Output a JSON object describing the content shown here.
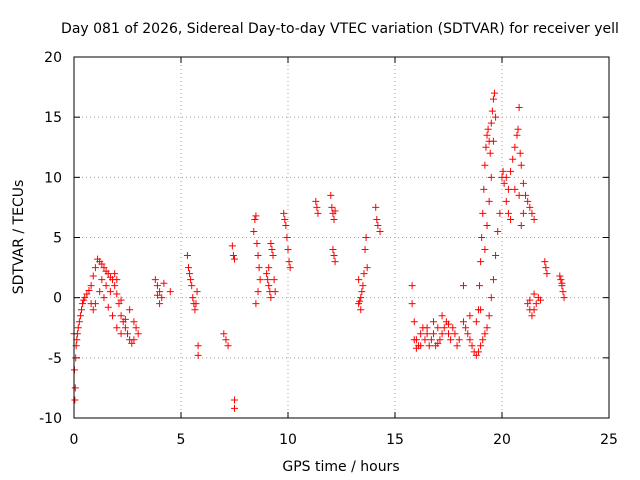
{
  "chart_data": {
    "type": "scatter",
    "title": "Day 081 of 2026, Sidereal Day-to-day VTEC variation (SDTVAR) for receiver yell",
    "xlabel": "GPS time / hours",
    "ylabel": "SDTVAR / TECUs",
    "xlim": [
      0,
      25
    ],
    "ylim": [
      -10,
      20
    ],
    "xticks": [
      0,
      5,
      10,
      15,
      20,
      25
    ],
    "yticks": [
      -10,
      -5,
      0,
      5,
      10,
      15,
      20
    ],
    "xtick_labels": [
      "0",
      "5",
      "10",
      "15",
      "20",
      "25"
    ],
    "ytick_labels": [
      "-10",
      "-5",
      "0",
      "5",
      "10",
      "15",
      "20"
    ],
    "grid": true,
    "marker": "+",
    "color": "#ff0000",
    "series": [
      {
        "name": "SDTVAR",
        "points": [
          [
            0.0,
            -3.0
          ],
          [
            0.02,
            -6.0
          ],
          [
            0.04,
            -8.5
          ],
          [
            0.06,
            -7.5
          ],
          [
            0.08,
            -5.0
          ],
          [
            0.1,
            -4.0
          ],
          [
            0.13,
            -3.5
          ],
          [
            0.16,
            -3.0
          ],
          [
            0.2,
            -2.5
          ],
          [
            0.25,
            -2.0
          ],
          [
            0.3,
            -1.5
          ],
          [
            0.35,
            -1.0
          ],
          [
            0.4,
            -0.5
          ],
          [
            0.45,
            -0.2
          ],
          [
            0.5,
            0.0
          ],
          [
            0.6,
            0.3
          ],
          [
            0.7,
            0.6
          ],
          [
            0.8,
            1.0
          ],
          [
            0.9,
            1.8
          ],
          [
            1.0,
            2.5
          ],
          [
            1.1,
            3.2
          ],
          [
            1.2,
            3.0
          ],
          [
            1.3,
            2.8
          ],
          [
            1.4,
            2.5
          ],
          [
            1.5,
            2.2
          ],
          [
            1.6,
            2.0
          ],
          [
            1.7,
            1.7
          ],
          [
            1.8,
            1.5
          ],
          [
            1.9,
            1.0
          ],
          [
            2.0,
            0.3
          ],
          [
            2.1,
            -0.5
          ],
          [
            2.2,
            -1.5
          ],
          [
            2.3,
            -2.0
          ],
          [
            2.4,
            -2.5
          ],
          [
            2.5,
            -3.0
          ],
          [
            2.6,
            -3.5
          ],
          [
            2.7,
            -3.8
          ],
          [
            2.8,
            -3.5
          ],
          [
            2.9,
            -2.5
          ],
          [
            3.0,
            -3.0
          ],
          [
            0.8,
            -0.5
          ],
          [
            0.9,
            -1.0
          ],
          [
            1.0,
            -0.5
          ],
          [
            1.2,
            0.5
          ],
          [
            1.4,
            0.0
          ],
          [
            1.6,
            -0.8
          ],
          [
            1.8,
            -1.5
          ],
          [
            2.0,
            -2.5
          ],
          [
            2.2,
            -3.0
          ],
          [
            2.4,
            -1.8
          ],
          [
            2.6,
            -1.0
          ],
          [
            2.8,
            -2.0
          ],
          [
            1.3,
            1.5
          ],
          [
            1.5,
            1.0
          ],
          [
            1.7,
            0.5
          ],
          [
            1.9,
            2.0
          ],
          [
            2.0,
            1.5
          ],
          [
            2.2,
            -0.2
          ],
          [
            3.8,
            1.5
          ],
          [
            3.9,
            1.0
          ],
          [
            4.0,
            0.5
          ],
          [
            4.1,
            0.0
          ],
          [
            4.0,
            -0.5
          ],
          [
            3.9,
            0.2
          ],
          [
            4.2,
            1.2
          ],
          [
            4.5,
            0.5
          ],
          [
            5.3,
            3.5
          ],
          [
            5.35,
            2.5
          ],
          [
            5.4,
            2.0
          ],
          [
            5.45,
            1.5
          ],
          [
            5.5,
            1.0
          ],
          [
            5.55,
            0.0
          ],
          [
            5.6,
            -0.5
          ],
          [
            5.65,
            -1.0
          ],
          [
            5.7,
            -0.5
          ],
          [
            5.75,
            0.5
          ],
          [
            5.8,
            -4.0
          ],
          [
            5.8,
            -4.8
          ],
          [
            7.0,
            -3.0
          ],
          [
            7.1,
            -3.5
          ],
          [
            7.2,
            -4.0
          ],
          [
            7.4,
            4.3
          ],
          [
            7.45,
            3.5
          ],
          [
            7.5,
            3.2
          ],
          [
            7.5,
            -8.5
          ],
          [
            7.5,
            -9.2
          ],
          [
            8.4,
            5.5
          ],
          [
            8.45,
            6.5
          ],
          [
            8.5,
            6.8
          ],
          [
            8.55,
            4.5
          ],
          [
            8.6,
            3.5
          ],
          [
            8.65,
            2.5
          ],
          [
            8.7,
            1.5
          ],
          [
            8.5,
            -0.5
          ],
          [
            8.6,
            0.5
          ],
          [
            9.0,
            2.0
          ],
          [
            9.05,
            1.5
          ],
          [
            9.1,
            1.0
          ],
          [
            9.15,
            0.5
          ],
          [
            9.2,
            4.5
          ],
          [
            9.25,
            4.0
          ],
          [
            9.3,
            3.5
          ],
          [
            9.35,
            1.5
          ],
          [
            9.4,
            0.5
          ],
          [
            9.2,
            0.0
          ],
          [
            9.1,
            2.5
          ],
          [
            9.8,
            7.0
          ],
          [
            9.85,
            6.5
          ],
          [
            9.9,
            6.0
          ],
          [
            9.95,
            5.0
          ],
          [
            10.0,
            4.0
          ],
          [
            10.05,
            3.0
          ],
          [
            10.1,
            2.5
          ],
          [
            11.3,
            8.0
          ],
          [
            11.35,
            7.5
          ],
          [
            11.4,
            7.0
          ],
          [
            12.0,
            8.5
          ],
          [
            12.05,
            7.5
          ],
          [
            12.1,
            7.0
          ],
          [
            12.15,
            6.5
          ],
          [
            12.2,
            7.2
          ],
          [
            12.1,
            4.0
          ],
          [
            12.15,
            3.5
          ],
          [
            12.2,
            3.0
          ],
          [
            13.3,
            -0.5
          ],
          [
            13.35,
            -0.3
          ],
          [
            13.4,
            0.0
          ],
          [
            13.45,
            0.5
          ],
          [
            13.5,
            1.0
          ],
          [
            13.55,
            2.0
          ],
          [
            13.6,
            4.0
          ],
          [
            13.65,
            5.0
          ],
          [
            13.7,
            2.5
          ],
          [
            13.4,
            -1.0
          ],
          [
            13.3,
            1.5
          ],
          [
            14.1,
            7.5
          ],
          [
            14.15,
            6.5
          ],
          [
            14.2,
            6.0
          ],
          [
            14.3,
            5.5
          ],
          [
            15.8,
            1.0
          ],
          [
            15.8,
            -0.5
          ],
          [
            15.9,
            -2.0
          ],
          [
            16.0,
            -3.5
          ],
          [
            16.1,
            -4.0
          ],
          [
            16.2,
            -3.0
          ],
          [
            16.3,
            -2.5
          ],
          [
            16.4,
            -3.5
          ],
          [
            16.5,
            -3.0
          ],
          [
            16.6,
            -4.0
          ],
          [
            16.7,
            -3.5
          ],
          [
            16.8,
            -3.0
          ],
          [
            16.9,
            -4.0
          ],
          [
            17.0,
            -2.5
          ],
          [
            17.1,
            -3.5
          ],
          [
            17.2,
            -3.0
          ],
          [
            17.3,
            -2.5
          ],
          [
            17.4,
            -2.0
          ],
          [
            17.5,
            -3.0
          ],
          [
            17.6,
            -3.5
          ],
          [
            17.7,
            -2.5
          ],
          [
            17.8,
            -3.0
          ],
          [
            17.9,
            -4.0
          ],
          [
            18.0,
            -3.5
          ],
          [
            15.9,
            -3.5
          ],
          [
            16.0,
            -4.2
          ],
          [
            16.2,
            -4.0
          ],
          [
            16.5,
            -2.5
          ],
          [
            17.0,
            -3.8
          ],
          [
            17.5,
            -2.2
          ],
          [
            16.8,
            -2.0
          ],
          [
            17.2,
            -1.5
          ],
          [
            18.2,
            -2.0
          ],
          [
            18.3,
            -2.5
          ],
          [
            18.4,
            -3.0
          ],
          [
            18.5,
            -3.5
          ],
          [
            18.6,
            -4.0
          ],
          [
            18.7,
            -4.5
          ],
          [
            18.8,
            -4.8
          ],
          [
            18.9,
            -4.5
          ],
          [
            19.0,
            -4.0
          ],
          [
            19.1,
            -3.5
          ],
          [
            19.2,
            -3.0
          ],
          [
            19.3,
            -2.5
          ],
          [
            19.4,
            -1.5
          ],
          [
            19.5,
            0.0
          ],
          [
            19.6,
            1.5
          ],
          [
            19.7,
            3.5
          ],
          [
            19.8,
            5.5
          ],
          [
            19.9,
            7.0
          ],
          [
            18.5,
            -1.5
          ],
          [
            18.8,
            -2.0
          ],
          [
            19.0,
            -1.0
          ],
          [
            18.2,
            1.0
          ],
          [
            18.9,
            -1.0
          ],
          [
            18.95,
            1.0
          ],
          [
            19.0,
            3.0
          ],
          [
            19.05,
            5.0
          ],
          [
            19.1,
            7.0
          ],
          [
            19.15,
            9.0
          ],
          [
            19.2,
            11.0
          ],
          [
            19.25,
            12.5
          ],
          [
            19.3,
            13.5
          ],
          [
            19.35,
            14.0
          ],
          [
            19.4,
            13.0
          ],
          [
            19.45,
            12.0
          ],
          [
            19.5,
            14.5
          ],
          [
            19.55,
            15.5
          ],
          [
            19.6,
            16.5
          ],
          [
            19.65,
            17.0
          ],
          [
            19.7,
            15.0
          ],
          [
            19.6,
            13.0
          ],
          [
            19.5,
            10.0
          ],
          [
            19.4,
            8.0
          ],
          [
            19.3,
            6.0
          ],
          [
            19.2,
            4.0
          ],
          [
            20.0,
            10.0
          ],
          [
            20.05,
            10.5
          ],
          [
            20.1,
            9.5
          ],
          [
            20.2,
            10.0
          ],
          [
            20.3,
            9.0
          ],
          [
            20.4,
            10.5
          ],
          [
            20.5,
            11.5
          ],
          [
            20.6,
            12.5
          ],
          [
            20.7,
            13.5
          ],
          [
            20.75,
            14.0
          ],
          [
            20.8,
            15.8
          ],
          [
            20.85,
            12.0
          ],
          [
            20.9,
            11.0
          ],
          [
            21.0,
            9.5
          ],
          [
            21.1,
            8.5
          ],
          [
            21.2,
            8.0
          ],
          [
            21.3,
            7.5
          ],
          [
            21.4,
            7.0
          ],
          [
            21.5,
            6.5
          ],
          [
            20.2,
            8.0
          ],
          [
            20.3,
            7.0
          ],
          [
            20.4,
            6.5
          ],
          [
            20.6,
            9.0
          ],
          [
            20.8,
            8.5
          ],
          [
            21.0,
            7.0
          ],
          [
            20.9,
            6.0
          ],
          [
            21.2,
            -0.5
          ],
          [
            21.3,
            -1.0
          ],
          [
            21.4,
            -1.5
          ],
          [
            21.5,
            -1.0
          ],
          [
            21.6,
            -0.5
          ],
          [
            21.7,
            0.0
          ],
          [
            21.8,
            -0.2
          ],
          [
            21.3,
            -0.2
          ],
          [
            21.5,
            0.3
          ],
          [
            22.0,
            3.0
          ],
          [
            22.05,
            2.5
          ],
          [
            22.1,
            2.0
          ],
          [
            22.7,
            1.8
          ],
          [
            22.75,
            1.5
          ],
          [
            22.8,
            1.0
          ],
          [
            22.85,
            0.5
          ],
          [
            22.9,
            0.0
          ],
          [
            22.8,
            1.2
          ]
        ]
      }
    ]
  }
}
